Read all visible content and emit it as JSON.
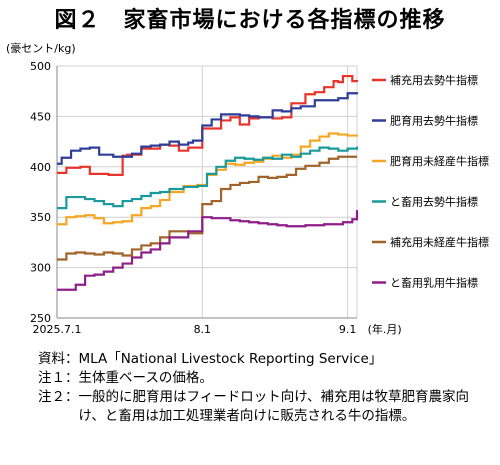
{
  "chart_data": {
    "type": "line",
    "title": "図２　家畜市場における各指標の推移",
    "ylabel": "(豪セント/kg)",
    "xlabel": "(年.月)",
    "ylim": [
      250,
      500
    ],
    "yticks": [
      250,
      300,
      350,
      400,
      450,
      500
    ],
    "xlim": [
      0,
      64
    ],
    "xticks": [
      {
        "x": 0,
        "label": "2025.7.1"
      },
      {
        "x": 31,
        "label": "8.1"
      },
      {
        "x": 62,
        "label": "9.1"
      }
    ],
    "grid": true,
    "legend_position": "right",
    "series": [
      {
        "name": "補充用去勢牛指標",
        "color": "#e8342a",
        "x": [
          0,
          2,
          5,
          7,
          11,
          14,
          15,
          18,
          20,
          22,
          24,
          26,
          28,
          31,
          33,
          35,
          37,
          39,
          41,
          43,
          46,
          48,
          50,
          53,
          55,
          57,
          59,
          60,
          61,
          63,
          64
        ],
        "y": [
          394,
          399,
          400,
          393,
          392,
          411,
          412,
          418,
          418,
          422,
          421,
          416,
          419,
          438,
          438,
          446,
          449,
          442,
          448,
          449,
          448,
          449,
          463,
          472,
          474,
          479,
          485,
          484,
          490,
          485,
          484
        ]
      },
      {
        "name": "肥育用去勢牛指標",
        "color": "#2f3d99",
        "x": [
          0,
          1,
          3,
          5,
          7,
          9,
          12,
          14,
          16,
          18,
          20,
          22,
          24,
          26,
          28,
          29,
          31,
          33,
          35,
          37,
          39,
          41,
          43,
          46,
          48,
          50,
          52,
          55,
          58,
          60,
          62,
          64
        ],
        "y": [
          403,
          409,
          416,
          418,
          419,
          412,
          410,
          410,
          413,
          420,
          421,
          422,
          425,
          422,
          424,
          426,
          441,
          447,
          452,
          452,
          451,
          450,
          449,
          456,
          455,
          458,
          460,
          466,
          466,
          468,
          473,
          472
        ]
      },
      {
        "name": "肥育用未経産牛指標",
        "color": "#f5a623",
        "x": [
          0,
          2,
          4,
          6,
          8,
          10,
          12,
          14,
          16,
          18,
          20,
          22,
          24,
          27,
          30,
          32,
          34,
          36,
          38,
          40,
          42,
          44,
          46,
          48,
          50,
          52,
          54,
          56,
          58,
          60,
          62,
          64
        ],
        "y": [
          343,
          350,
          351,
          352,
          349,
          344,
          345,
          346,
          352,
          359,
          361,
          367,
          375,
          381,
          382,
          392,
          397,
          403,
          402,
          404,
          405,
          408,
          411,
          409,
          412,
          420,
          426,
          430,
          433,
          432,
          431,
          430
        ]
      },
      {
        "name": "と畜用去勢牛指標",
        "color": "#1a9a9a",
        "x": [
          0,
          2,
          4,
          6,
          8,
          10,
          12,
          14,
          16,
          18,
          20,
          22,
          24,
          27,
          30,
          32,
          34,
          36,
          38,
          40,
          42,
          44,
          46,
          48,
          50,
          52,
          54,
          56,
          58,
          60,
          62,
          64
        ],
        "y": [
          359,
          370,
          370,
          368,
          366,
          363,
          361,
          366,
          368,
          371,
          374,
          375,
          378,
          380,
          381,
          393,
          400,
          406,
          409,
          408,
          407,
          409,
          408,
          412,
          410,
          413,
          416,
          419,
          418,
          416,
          418,
          420
        ]
      },
      {
        "name": "補充用未経産牛指標",
        "color": "#a0642a",
        "x": [
          0,
          2,
          4,
          6,
          8,
          10,
          12,
          14,
          16,
          18,
          20,
          22,
          24,
          26,
          28,
          31,
          33,
          35,
          37,
          39,
          41,
          43,
          45,
          47,
          49,
          51,
          53,
          56,
          58,
          60,
          62,
          64
        ],
        "y": [
          308,
          314,
          315,
          314,
          313,
          315,
          314,
          312,
          318,
          322,
          324,
          330,
          336,
          336,
          334,
          363,
          366,
          378,
          382,
          384,
          385,
          390,
          389,
          390,
          392,
          398,
          401,
          404,
          408,
          410,
          410,
          410
        ]
      },
      {
        "name": "と畜用乳用牛指標",
        "color": "#8e1f8a",
        "x": [
          0,
          2,
          4,
          6,
          8,
          10,
          12,
          14,
          16,
          18,
          20,
          22,
          24,
          26,
          28,
          31,
          33,
          35,
          37,
          39,
          41,
          43,
          45,
          47,
          49,
          51,
          53,
          55,
          57,
          59,
          61,
          63,
          64
        ],
        "y": [
          278,
          278,
          283,
          292,
          293,
          296,
          300,
          304,
          310,
          315,
          318,
          324,
          330,
          330,
          336,
          350,
          349,
          349,
          347,
          346,
          345,
          344,
          343,
          342,
          341,
          341,
          342,
          342,
          343,
          343,
          345,
          348,
          357
        ]
      }
    ]
  },
  "notes": [
    {
      "head": "資料：",
      "body": "MLA「National Livestock Reporting Service」"
    },
    {
      "head": "注１：",
      "body": "生体重ベースの価格。"
    },
    {
      "head": "注２：",
      "body": "一般的に肥育用はフィードロット向け、補充用は牧草肥育農家向け、と畜用は加工処理業者向けに販売される牛の指標。"
    }
  ]
}
